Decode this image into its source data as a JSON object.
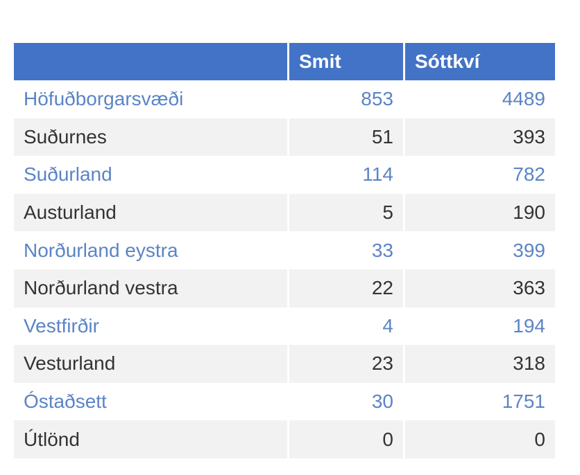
{
  "chart_data": {
    "type": "table",
    "columns": [
      "",
      "Smit",
      "Sóttkví"
    ],
    "rows": [
      {
        "region": "Höfuðborgarsvæði",
        "smit": "853",
        "sottkvi": "4489"
      },
      {
        "region": "Suðurnes",
        "smit": "51",
        "sottkvi": "393"
      },
      {
        "region": "Suðurland",
        "smit": "114",
        "sottkvi": "782"
      },
      {
        "region": "Austurland",
        "smit": "5",
        "sottkvi": "190"
      },
      {
        "region": "Norðurland eystra",
        "smit": "33",
        "sottkvi": "399"
      },
      {
        "region": "Norðurland vestra",
        "smit": "22",
        "sottkvi": "363"
      },
      {
        "region": "Vestfirðir",
        "smit": "4",
        "sottkvi": "194"
      },
      {
        "region": "Vesturland",
        "smit": "23",
        "sottkvi": "318"
      },
      {
        "region": "Óstaðsett",
        "smit": "30",
        "sottkvi": "1751"
      },
      {
        "region": "Útlönd",
        "smit": "0",
        "sottkvi": "0"
      }
    ]
  },
  "colors": {
    "header_bg": "#4273c6",
    "header_text": "#ffffff",
    "link_row_text": "#5b84c6",
    "plain_row_text": "#333333",
    "alt_row_bg": "#f2f2f2"
  }
}
